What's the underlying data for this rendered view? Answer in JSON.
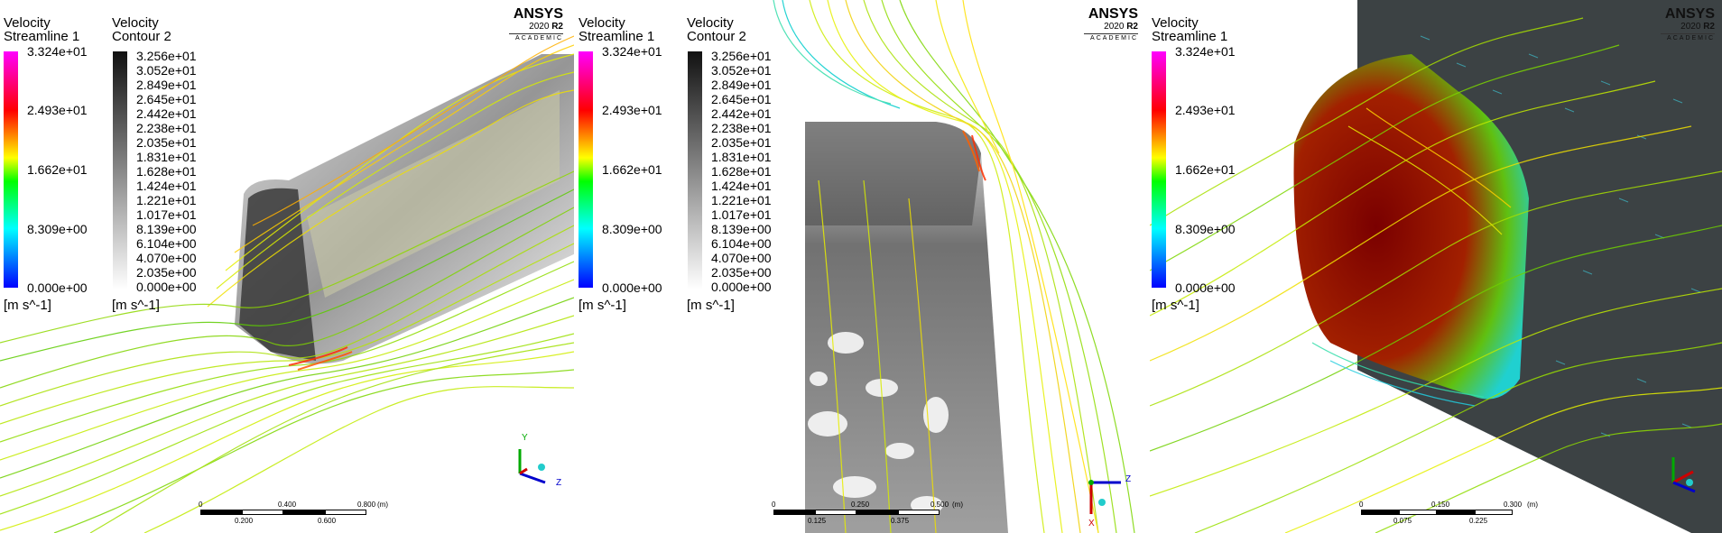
{
  "brand": {
    "name": "ANSYS",
    "version": "2020",
    "release": "R2",
    "edition": "ACADEMIC"
  },
  "streamline_legend": {
    "line1": "Velocity",
    "line2": "Streamline 1",
    "ticks": [
      "3.324e+01",
      "2.493e+01",
      "1.662e+01",
      "8.309e+00",
      "0.000e+00"
    ],
    "unit": "[m s^-1]"
  },
  "contour_legend": {
    "line1": "Velocity",
    "line2": "Contour 2",
    "ticks": [
      "3.256e+01",
      "3.052e+01",
      "2.849e+01",
      "2.645e+01",
      "2.442e+01",
      "2.238e+01",
      "2.035e+01",
      "1.831e+01",
      "1.628e+01",
      "1.424e+01",
      "1.221e+01",
      "1.017e+01",
      "8.139e+00",
      "6.104e+00",
      "4.070e+00",
      "2.035e+00",
      "0.000e+00"
    ],
    "unit": "[m s^-1]"
  },
  "scalebars": {
    "panel1": {
      "top": [
        "0",
        "0.400",
        "0.800"
      ],
      "bottom": [
        "0.200",
        "0.600"
      ],
      "unit": "(m)"
    },
    "panel2": {
      "top": [
        "0",
        "0.250",
        "0.500"
      ],
      "bottom": [
        "0.125",
        "0.375"
      ],
      "unit": "(m)"
    },
    "panel3": {
      "top": [
        "0",
        "0.150",
        "0.300"
      ],
      "bottom": [
        "0.075",
        "0.225"
      ],
      "unit": "(m)"
    }
  },
  "axes_labels": {
    "x": "X",
    "y": "Y",
    "z": "Z"
  },
  "colors": {
    "rainbow": [
      "#ff00ff",
      "#ff0000",
      "#ffa500",
      "#ffff00",
      "#00ff00",
      "#00ffff",
      "#0000ff"
    ],
    "gray": [
      "#111111",
      "#ffffff"
    ]
  }
}
